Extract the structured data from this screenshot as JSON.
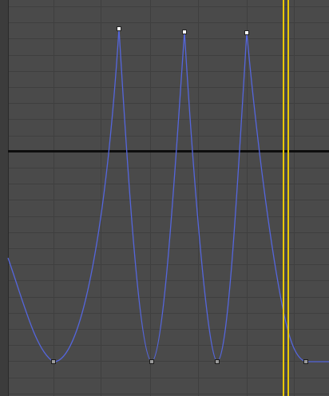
{
  "window": {
    "title": ""
  },
  "colors": {
    "background": "#4a4a4a",
    "left_gutter": "#3c3c3c",
    "gutter_border": "#2a2a2a",
    "grid_line": "#3f3f3f",
    "baseline": "#0d0d0d",
    "curve": "#5566dd",
    "key_active_fill": "#ffffff",
    "key_active_stroke": "#222222",
    "key_fill": "#9a9a9a",
    "key_stroke": "#1c1c1c",
    "time_slider": "#e8c800"
  },
  "curve_editor": {
    "curve_name": "",
    "keyframes": [
      {
        "index": 0,
        "selected": false,
        "tangent": "smooth"
      },
      {
        "index": 1,
        "selected": true,
        "tangent": "sharp"
      },
      {
        "index": 2,
        "selected": false,
        "tangent": "smooth"
      },
      {
        "index": 3,
        "selected": true,
        "tangent": "sharp"
      },
      {
        "index": 4,
        "selected": false,
        "tangent": "smooth"
      },
      {
        "index": 5,
        "selected": true,
        "tangent": "sharp"
      },
      {
        "index": 6,
        "selected": false,
        "tangent": "flat"
      }
    ],
    "icons": {
      "key_icon": "square-key-icon",
      "time_slider_icon": "vertical-double-line-icon"
    }
  }
}
